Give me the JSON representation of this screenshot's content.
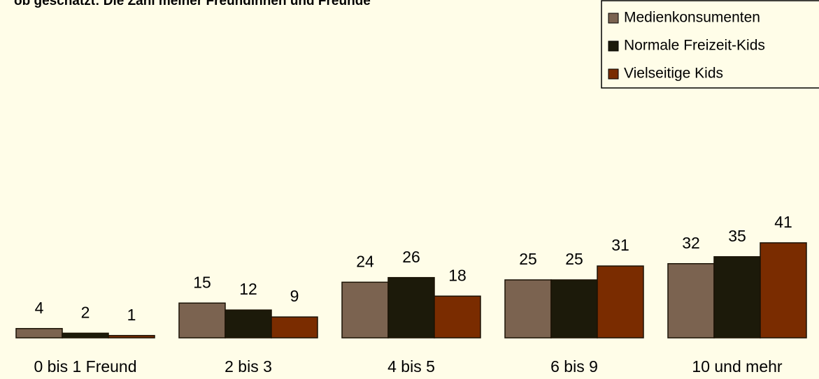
{
  "chart_data": {
    "type": "bar",
    "title": "ob geschätzt: Die Zahl meiner Freundinnen und Freunde",
    "categories": [
      "0 bis 1 Freund",
      "2 bis 3",
      "4 bis 5",
      "6 bis 9",
      "10 und mehr"
    ],
    "series": [
      {
        "name": "Medienkonsumenten",
        "color": "#7b6350",
        "values": [
          4,
          15,
          24,
          25,
          32
        ]
      },
      {
        "name": "Normale Freizeit-Kids",
        "color": "#1c1a0a",
        "values": [
          2,
          12,
          26,
          25,
          35
        ]
      },
      {
        "name": "Vielseitige Kids",
        "color": "#7a2c00",
        "values": [
          1,
          9,
          18,
          31,
          41
        ]
      }
    ]
  }
}
